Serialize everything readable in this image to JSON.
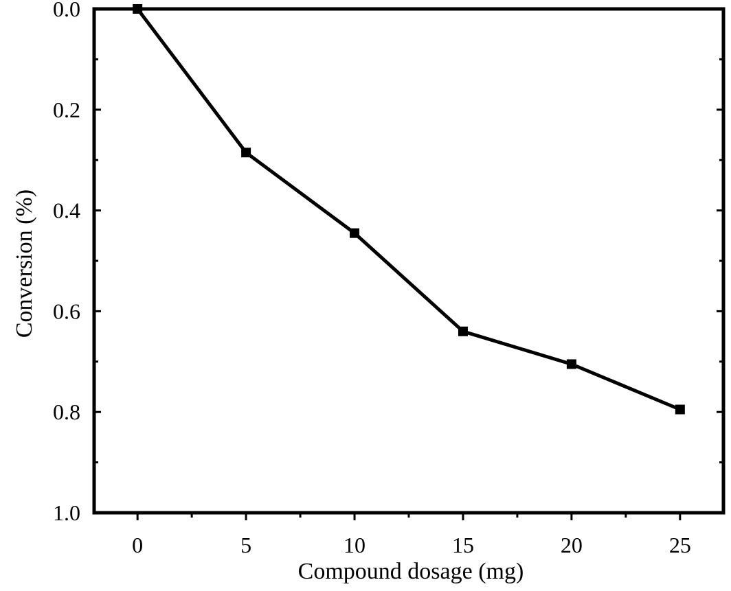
{
  "chart_data": {
    "type": "line",
    "title": "",
    "xlabel": "Compound dosage (mg)",
    "ylabel": "Conversion (%)",
    "xlim": [
      -2,
      27
    ],
    "ylim": [
      0.0,
      1.0
    ],
    "y_inverted": true,
    "x_ticks": [
      0,
      5,
      10,
      15,
      20,
      25
    ],
    "x_tick_labels": [
      "0",
      "5",
      "10",
      "15",
      "20",
      "25"
    ],
    "x_minor_ticks": [
      2.5,
      7.5,
      12.5,
      17.5,
      22.5
    ],
    "y_ticks": [
      0.0,
      0.2,
      0.4,
      0.6,
      0.8,
      1.0
    ],
    "y_tick_labels": [
      "0.0",
      "0.2",
      "0.4",
      "0.6",
      "0.8",
      "1.0"
    ],
    "y_minor_ticks": [
      0.1,
      0.3,
      0.5,
      0.7,
      0.9
    ],
    "grid": false,
    "series": [
      {
        "name": "Conversion",
        "color": "#000000",
        "marker": "square",
        "x": [
          0,
          5,
          10,
          15,
          20,
          25
        ],
        "values": [
          0.0,
          0.285,
          0.445,
          0.64,
          0.705,
          0.795
        ]
      }
    ]
  }
}
